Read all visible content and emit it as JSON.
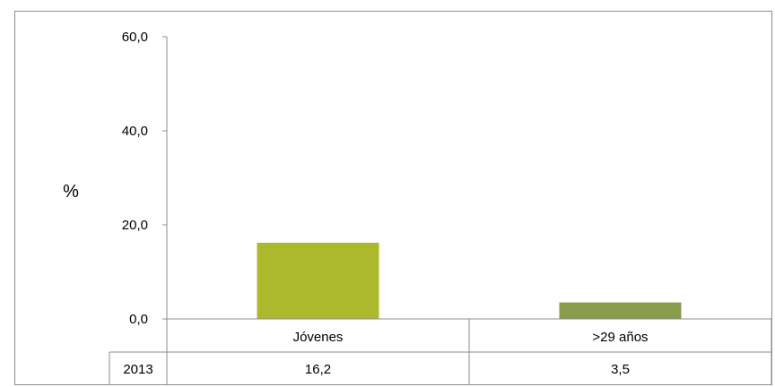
{
  "chart_data": {
    "type": "bar",
    "categories": [
      "Jóvenes",
      ">29 años"
    ],
    "series": [
      {
        "name": "2013",
        "values": [
          16.2,
          3.5
        ],
        "value_labels": [
          "16,2",
          "3,5"
        ]
      }
    ],
    "ylabel": "%",
    "yticks": [
      "0,0",
      "20,0",
      "40,0",
      "60,0"
    ],
    "ytick_values": [
      0,
      20,
      40,
      60
    ],
    "ylim": [
      0,
      60
    ],
    "grid": false,
    "data_table": true,
    "colors": [
      "#adb92d",
      "#899c4d"
    ]
  }
}
